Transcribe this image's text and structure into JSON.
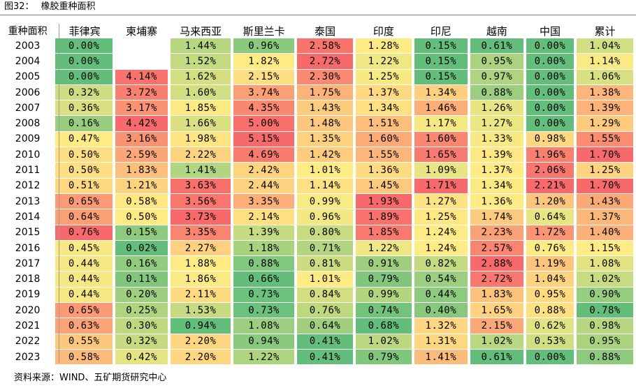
{
  "figure": {
    "number": "图32：",
    "title": "橡胶重种面积"
  },
  "source": "资料来源：WIND、五矿期货研究中心",
  "chart_data": {
    "type": "table",
    "corner_label": "重种面积",
    "columns": [
      "菲律宾",
      "柬埔寨",
      "马来西亚",
      "斯里兰卡",
      "泰国",
      "印度",
      "印尼",
      "越南",
      "中国",
      "累计"
    ],
    "rows": [
      {
        "year": "2003",
        "values": [
          "0.00%",
          "",
          "1.44%",
          "0.96%",
          "2.58%",
          "1.28%",
          "0.15%",
          "0.61%",
          "0.00%",
          "1.04%"
        ]
      },
      {
        "year": "2004",
        "values": [
          "0.00%",
          "",
          "1.52%",
          "1.82%",
          "2.72%",
          "1.22%",
          "0.15%",
          "0.95%",
          "0.00%",
          "1.14%"
        ]
      },
      {
        "year": "2005",
        "values": [
          "0.00%",
          "4.14%",
          "1.62%",
          "2.15%",
          "2.30%",
          "1.25%",
          "0.15%",
          "0.97%",
          "0.00%",
          "1.06%"
        ]
      },
      {
        "year": "2006",
        "values": [
          "0.32%",
          "3.72%",
          "1.60%",
          "3.74%",
          "1.75%",
          "1.37%",
          "1.34%",
          "0.88%",
          "0.00%",
          "1.38%"
        ]
      },
      {
        "year": "2007",
        "values": [
          "0.36%",
          "3.17%",
          "1.85%",
          "4.35%",
          "1.43%",
          "1.34%",
          "1.46%",
          "1.26%",
          "0.00%",
          "1.39%"
        ]
      },
      {
        "year": "2008",
        "values": [
          "0.16%",
          "4.42%",
          "1.66%",
          "5.00%",
          "1.48%",
          "1.51%",
          "1.17%",
          "1.27%",
          "0.00%",
          "1.29%"
        ]
      },
      {
        "year": "2009",
        "values": [
          "0.47%",
          "3.16%",
          "1.98%",
          "5.15%",
          "1.35%",
          "1.60%",
          "1.60%",
          "1.33%",
          "0.98%",
          "1.55%"
        ]
      },
      {
        "year": "2010",
        "values": [
          "0.50%",
          "2.59%",
          "2.22%",
          "4.69%",
          "1.42%",
          "1.55%",
          "1.65%",
          "1.39%",
          "1.96%",
          "1.70%"
        ]
      },
      {
        "year": "2011",
        "values": [
          "0.50%",
          "1.83%",
          "1.41%",
          "2.42%",
          "1.01%",
          "1.36%",
          "1.09%",
          "1.37%",
          "2.06%",
          "1.25%"
        ]
      },
      {
        "year": "2012",
        "values": [
          "0.51%",
          "1.21%",
          "3.63%",
          "2.44%",
          "1.14%",
          "1.45%",
          "1.71%",
          "1.34%",
          "2.21%",
          "1.70%"
        ]
      },
      {
        "year": "2013",
        "values": [
          "0.65%",
          "0.58%",
          "3.56%",
          "3.35%",
          "0.99%",
          "1.93%",
          "1.27%",
          "1.36%",
          "1.20%",
          "1.43%"
        ]
      },
      {
        "year": "2014",
        "values": [
          "0.64%",
          "0.50%",
          "3.73%",
          "2.14%",
          "0.96%",
          "1.89%",
          "1.25%",
          "1.74%",
          "0.64%",
          "1.37%"
        ]
      },
      {
        "year": "2015",
        "values": [
          "0.76%",
          "0.15%",
          "3.35%",
          "1.39%",
          "0.80%",
          "1.85%",
          "1.24%",
          "2.23%",
          "1.72%",
          "1.40%"
        ]
      },
      {
        "year": "2016",
        "values": [
          "0.45%",
          "0.02%",
          "2.27%",
          "1.18%",
          "0.71%",
          "1.22%",
          "1.24%",
          "2.57%",
          "0.76%",
          "1.15%"
        ]
      },
      {
        "year": "2017",
        "values": [
          "0.44%",
          "0.16%",
          "1.88%",
          "0.88%",
          "0.81%",
          "0.91%",
          "0.82%",
          "2.88%",
          "1.19%",
          "1.08%"
        ]
      },
      {
        "year": "2018",
        "values": [
          "0.44%",
          "0.11%",
          "1.86%",
          "0.66%",
          "1.01%",
          "0.79%",
          "0.54%",
          "2.72%",
          "1.04%",
          "1.02%"
        ]
      },
      {
        "year": "2019",
        "values": [
          "0.44%",
          "0.20%",
          "2.11%",
          "0.73%",
          "0.84%",
          "0.99%",
          "0.44%",
          "1.83%",
          "0.95%",
          "0.90%"
        ]
      },
      {
        "year": "2020",
        "values": [
          "0.65%",
          "0.25%",
          "1.53%",
          "0.73%",
          "0.76%",
          "0.74%",
          "0.40%",
          "1.65%",
          "0.88%",
          "0.78%"
        ]
      },
      {
        "year": "2021",
        "values": [
          "0.63%",
          "0.30%",
          "0.94%",
          "1.08%",
          "0.64%",
          "0.68%",
          "1.32%",
          "2.15%",
          "0.62%",
          "0.98%"
        ]
      },
      {
        "year": "2022",
        "values": [
          "0.55%",
          "0.32%",
          "2.20%",
          "0.94%",
          "0.41%",
          "1.02%",
          "1.31%",
          "1.02%",
          "0.53%",
          "0.95%"
        ]
      },
      {
        "year": "2023",
        "values": [
          "0.58%",
          "0.42%",
          "2.20%",
          "1.22%",
          "0.41%",
          "0.79%",
          "1.41%",
          "0.61%",
          "0.00%",
          "0.88%"
        ]
      }
    ],
    "color_scale": {
      "low": "#63be7b",
      "mid": "#ffeb84",
      "high": "#f8696b",
      "scope": "per-column"
    }
  }
}
